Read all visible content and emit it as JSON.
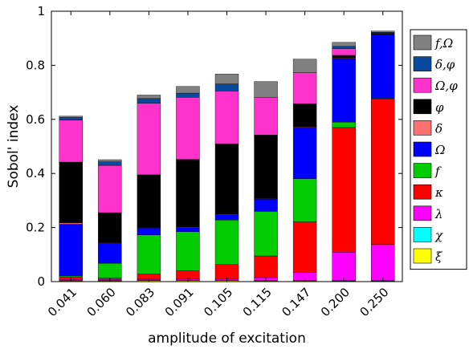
{
  "chart_data": {
    "type": "bar",
    "stacked": true,
    "xlabel": "amplitude of excitation",
    "ylabel": "Sobol' index",
    "ylim": [
      0,
      1
    ],
    "yticks": [
      "0",
      "0.2",
      "0.4",
      "0.6",
      "0.8",
      "1"
    ],
    "grid": false,
    "legend_position": "right",
    "categories": [
      "0.041",
      "0.060",
      "0.083",
      "0.091",
      "0.105",
      "0.115",
      "0.147",
      "0.200",
      "0.250"
    ],
    "series": [
      {
        "name": "ξ",
        "color": "#ffff00",
        "values": [
          0.003,
          0.003,
          0.004,
          0.004,
          0.004,
          0.003,
          0.003,
          0.002,
          0.002
        ]
      },
      {
        "name": "χ",
        "color": "#00ffff",
        "values": [
          0.002,
          0.002,
          0.002,
          0.002,
          0.002,
          0.002,
          0.002,
          0.002,
          0.002
        ]
      },
      {
        "name": "λ",
        "color": "#ff00ff",
        "values": [
          0.003,
          0.003,
          0.003,
          0.004,
          0.004,
          0.01,
          0.03,
          0.105,
          0.133
        ]
      },
      {
        "name": "κ",
        "color": "#ff0000",
        "values": [
          0.01,
          0.005,
          0.019,
          0.03,
          0.053,
          0.08,
          0.186,
          0.461,
          0.538
        ]
      },
      {
        "name": "f",
        "color": "#00cc00",
        "values": [
          0.004,
          0.055,
          0.145,
          0.145,
          0.165,
          0.165,
          0.16,
          0.02,
          0.003
        ]
      },
      {
        "name": "Ω",
        "color": "#0000ff",
        "values": [
          0.19,
          0.075,
          0.025,
          0.015,
          0.02,
          0.045,
          0.19,
          0.235,
          0.235
        ]
      },
      {
        "name": "δ",
        "color": "#ff7070",
        "values": [
          0.005,
          0.002,
          0.002,
          0.002,
          0.002,
          0.002,
          0.002,
          0.002,
          0.002
        ]
      },
      {
        "name": "φ",
        "color": "#000000",
        "values": [
          0.225,
          0.11,
          0.195,
          0.25,
          0.26,
          0.235,
          0.085,
          0.01,
          0.003
        ]
      },
      {
        "name": "Ω,φ",
        "color": "#ff33cc",
        "values": [
          0.155,
          0.175,
          0.265,
          0.23,
          0.195,
          0.14,
          0.115,
          0.025,
          0.002
        ]
      },
      {
        "name": "δ,φ",
        "color": "#0a4a9e",
        "values": [
          0.01,
          0.013,
          0.017,
          0.015,
          0.026,
          0.0,
          0.0,
          0.008,
          0.002
        ]
      },
      {
        "name": "f,Ω",
        "color": "#808080",
        "values": [
          0.005,
          0.008,
          0.013,
          0.025,
          0.037,
          0.058,
          0.05,
          0.015,
          0.005
        ]
      }
    ]
  }
}
